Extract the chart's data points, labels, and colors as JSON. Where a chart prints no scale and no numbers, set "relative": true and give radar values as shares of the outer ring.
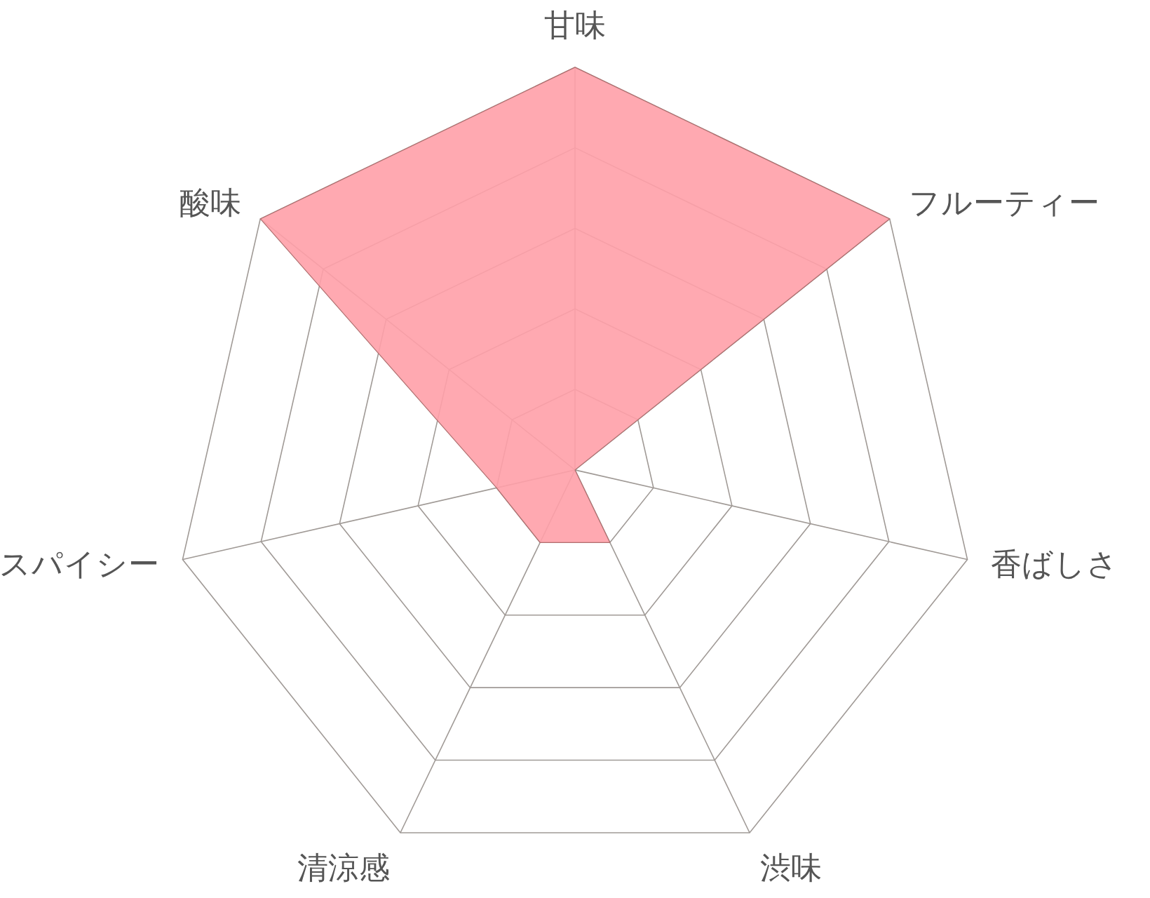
{
  "chart_data": {
    "type": "radar",
    "relative": true,
    "grid": true,
    "categories": [
      "甘味",
      "フルーティー",
      "香ばしさ",
      "渋味",
      "清涼感",
      "スパイシー",
      "酸味"
    ],
    "series": [
      {
        "color": "#ffa0a8",
        "values": [
          1,
          1,
          0,
          0.2,
          0.2,
          0.2,
          1
        ]
      }
    ]
  }
}
